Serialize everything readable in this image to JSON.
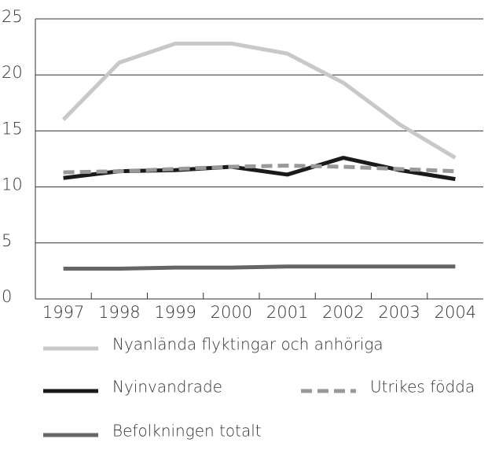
{
  "chart_data": {
    "type": "line",
    "categories": [
      "1997",
      "1998",
      "1999",
      "2000",
      "2001",
      "2002",
      "2003",
      "2004"
    ],
    "series": [
      {
        "name": "Nyanlända flyktingar och anhöriga",
        "color": "#c8c8c8",
        "dashed": false,
        "values": [
          16.0,
          21.1,
          22.8,
          22.8,
          21.9,
          19.3,
          15.6,
          12.6
        ]
      },
      {
        "name": "Nyinvandrade",
        "color": "#1a1a1a",
        "dashed": false,
        "values": [
          10.8,
          11.4,
          11.5,
          11.8,
          11.1,
          12.6,
          11.5,
          10.7
        ]
      },
      {
        "name": "Utrikes födda",
        "color": "#999999",
        "dashed": true,
        "values": [
          11.3,
          11.4,
          11.6,
          11.8,
          11.9,
          11.8,
          11.6,
          11.4
        ]
      },
      {
        "name": "Befolkningen totalt",
        "color": "#666666",
        "dashed": false,
        "values": [
          2.7,
          2.7,
          2.8,
          2.8,
          2.9,
          2.9,
          2.9,
          2.9
        ]
      }
    ],
    "ylim": [
      0,
      25
    ],
    "yticks": [
      0,
      5,
      10,
      15,
      20,
      25
    ],
    "grid": true
  }
}
